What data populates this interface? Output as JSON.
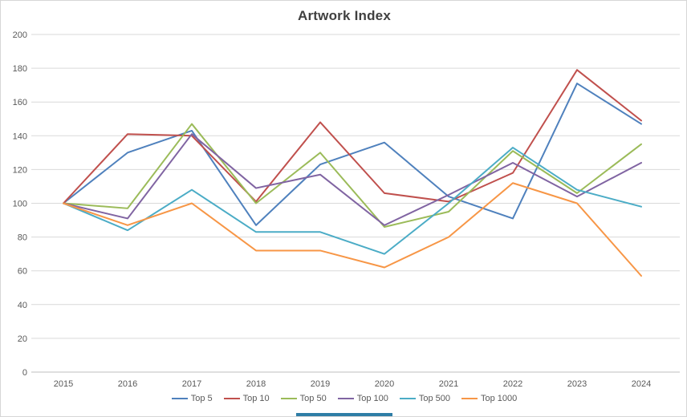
{
  "window": {
    "background": "#FFFFFF",
    "border_color": "#D6D6D6",
    "bottom_bar_color": "#2E7DA6"
  },
  "chart_data": {
    "type": "line",
    "title": "Artwork Index",
    "title_color": "#404040",
    "xlabel": "",
    "ylabel": "",
    "categories": [
      "2015",
      "2016",
      "2017",
      "2018",
      "2019",
      "2020",
      "2021",
      "2022",
      "2023",
      "2024"
    ],
    "series": [
      {
        "name": "Top 5",
        "color": "#4F81BD",
        "values": [
          100,
          130,
          143,
          87,
          123,
          136,
          104,
          91,
          171,
          147
        ]
      },
      {
        "name": "Top 10",
        "color": "#C0504D",
        "values": [
          100,
          141,
          140,
          101,
          148,
          106,
          101,
          118,
          179,
          149
        ]
      },
      {
        "name": "Top 50",
        "color": "#9BBB59",
        "values": [
          100,
          97,
          147,
          100,
          130,
          86,
          95,
          131,
          106,
          135
        ]
      },
      {
        "name": "Top 100",
        "color": "#8064A2",
        "values": [
          100,
          91,
          141,
          109,
          117,
          87,
          105,
          124,
          104,
          124
        ]
      },
      {
        "name": "Top 500",
        "color": "#4BACC6",
        "values": [
          100,
          84,
          108,
          83,
          83,
          70,
          100,
          133,
          108,
          98
        ]
      },
      {
        "name": "Top 1000",
        "color": "#F79646",
        "values": [
          100,
          87,
          100,
          72,
          72,
          62,
          80,
          112,
          100,
          57
        ]
      }
    ],
    "ylim": [
      0,
      200
    ],
    "yticks": [
      0,
      20,
      40,
      60,
      80,
      100,
      120,
      140,
      160,
      180,
      200
    ],
    "grid": true,
    "gridline_color": "#D9D9D9",
    "axis_line_color": "#BFBFBF",
    "axis_text_color": "#595959",
    "legend_position": "bottom",
    "line_width": 2
  }
}
